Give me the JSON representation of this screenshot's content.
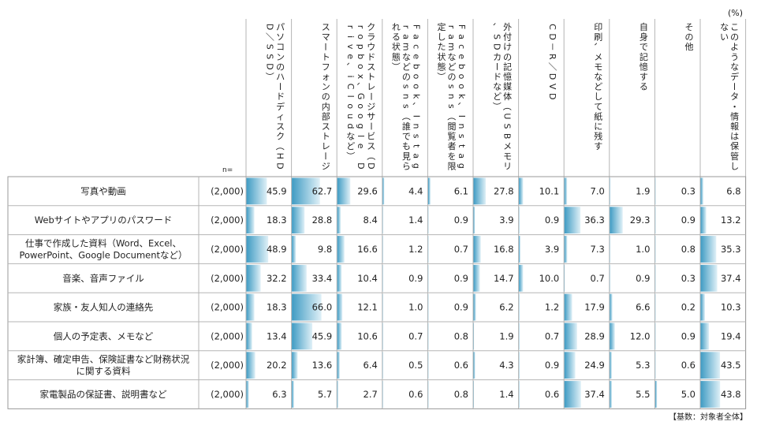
{
  "unit_label": "(%)",
  "n_label": "n=",
  "base_note": "【基数：対象者全体】",
  "accent_color": "#5aa9c9",
  "chart_data": {
    "type": "table",
    "columns": [
      "パソコンのハードディスク（HDD／SSD）",
      "スマートフォンの内部ストレージ",
      "クラウドストレージサービス（Dropbox、Google Drive、iCloudなど）",
      "Facebook、Instagramなどのsns（誰でも見られる状態）",
      "Facebook、Instagramなどのsns（閲覧者を限定した状態）",
      "外付けの記憶媒体（USBメモリ、SDカードなど）",
      "CD－R／DVD",
      "印刷、メモなどして紙に残す",
      "自身で記憶する",
      "その他",
      "このようなデータ・情報は保管しない"
    ],
    "rows": [
      {
        "label": [
          "写真や動画"
        ],
        "n": "(2,000)",
        "values": [
          45.9,
          62.7,
          29.6,
          4.4,
          6.1,
          27.8,
          10.1,
          7.0,
          1.9,
          0.3,
          6.8
        ]
      },
      {
        "label": [
          "Webサイトやアプリのパスワード"
        ],
        "n": "(2,000)",
        "values": [
          18.3,
          28.8,
          8.4,
          1.4,
          0.9,
          3.9,
          0.9,
          36.3,
          29.3,
          0.9,
          13.2
        ]
      },
      {
        "label": [
          "仕事で作成した資料（Word、Excel、",
          "PowerPoint、Google Documentなど）"
        ],
        "n": "(2,000)",
        "values": [
          48.9,
          9.8,
          16.6,
          1.2,
          0.7,
          16.8,
          3.9,
          7.3,
          1.0,
          0.8,
          35.3
        ]
      },
      {
        "label": [
          "音楽、音声ファイル"
        ],
        "n": "(2,000)",
        "values": [
          32.2,
          33.4,
          10.4,
          0.9,
          0.9,
          14.7,
          10.0,
          0.7,
          0.9,
          0.3,
          37.4
        ]
      },
      {
        "label": [
          "家族・友人知人の連絡先"
        ],
        "n": "(2,000)",
        "values": [
          18.3,
          66.0,
          12.1,
          1.0,
          0.9,
          6.2,
          1.2,
          17.9,
          6.6,
          0.2,
          10.3
        ]
      },
      {
        "label": [
          "個人の予定表、メモなど"
        ],
        "n": "(2,000)",
        "values": [
          13.4,
          45.9,
          10.6,
          0.7,
          0.8,
          1.9,
          0.7,
          28.9,
          12.0,
          0.9,
          19.4
        ]
      },
      {
        "label": [
          "家計簿、確定申告、保険証書など財務状況",
          "に関する資料"
        ],
        "n": "(2,000)",
        "values": [
          20.2,
          13.6,
          6.4,
          0.5,
          0.6,
          4.3,
          0.9,
          24.9,
          5.3,
          0.6,
          43.5
        ]
      },
      {
        "label": [
          "家電製品の保証書、説明書など"
        ],
        "n": "(2,000)",
        "values": [
          6.3,
          5.7,
          2.7,
          0.6,
          0.8,
          1.4,
          0.6,
          37.4,
          5.5,
          5.0,
          43.8
        ]
      }
    ],
    "value_range": [
      0,
      100
    ]
  }
}
